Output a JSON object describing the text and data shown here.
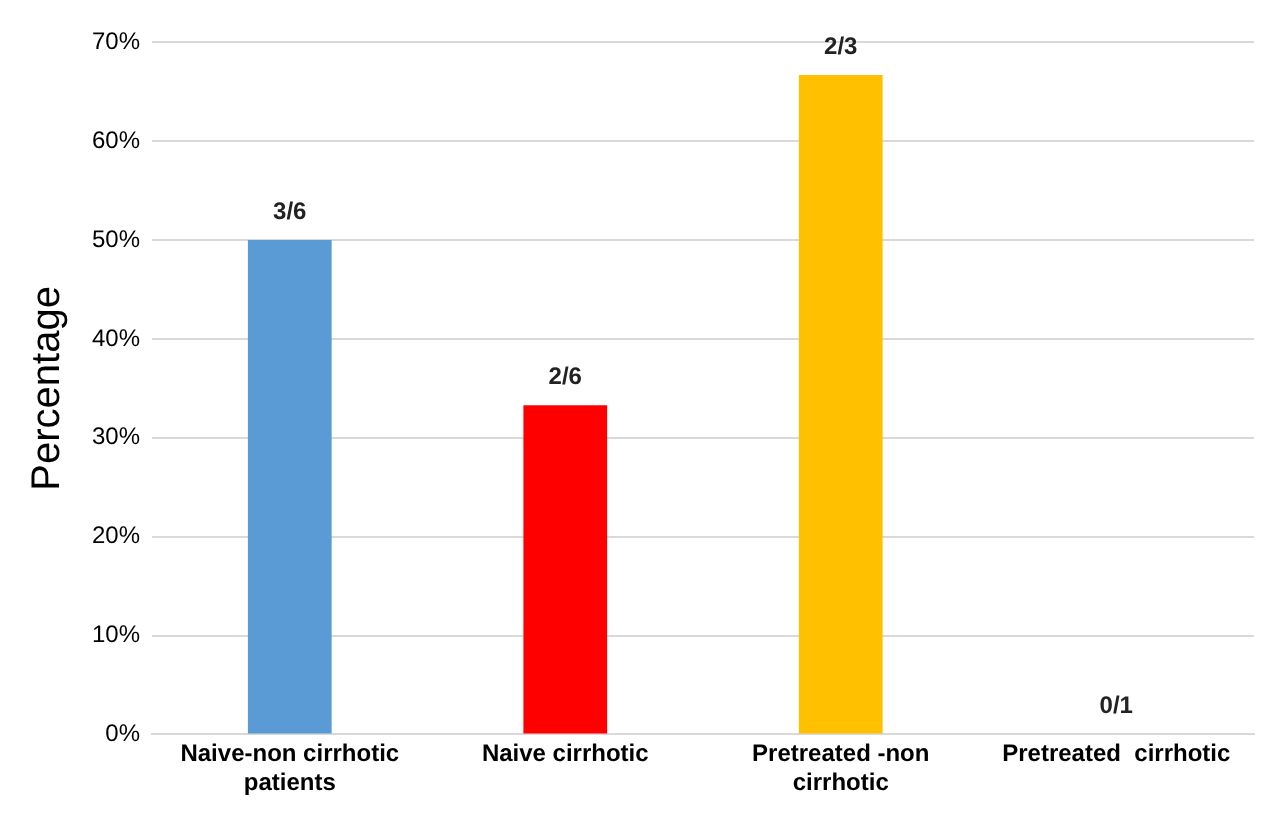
{
  "chart_data": {
    "type": "bar",
    "ylabel": "Percentage",
    "categories": [
      "Naive-non cirrhotic patients",
      "Naive cirrhotic",
      "Pretreated -non cirrhotic",
      "Pretreated  cirrhotic"
    ],
    "values": [
      50,
      33.3,
      66.7,
      0
    ],
    "colors": [
      "#5b9bd5",
      "#ff0000",
      "#ffc000",
      "#a5a5a5"
    ],
    "annotations": [
      {
        "text": "3/6",
        "x": "Naive-non cirrhotic patients",
        "y": 50
      },
      {
        "text": "2/6",
        "x": "Naive cirrhotic",
        "y": 33.3
      },
      {
        "text": "2/3",
        "x": "Pretreated -non cirrhotic",
        "y": 66.7
      },
      {
        "text": "0/1",
        "x": "Pretreated  cirrhotic",
        "y": 0
      }
    ],
    "ylim": [
      0,
      70
    ],
    "yticks": [
      {
        "value": 0,
        "label": "0%"
      },
      {
        "value": 10,
        "label": "10%"
      },
      {
        "value": 20,
        "label": "20%"
      },
      {
        "value": 30,
        "label": "30%"
      },
      {
        "value": 40,
        "label": "40%"
      },
      {
        "value": 50,
        "label": "50%"
      },
      {
        "value": 60,
        "label": "60%"
      },
      {
        "value": 70,
        "label": "70%"
      }
    ],
    "grid": "y"
  }
}
